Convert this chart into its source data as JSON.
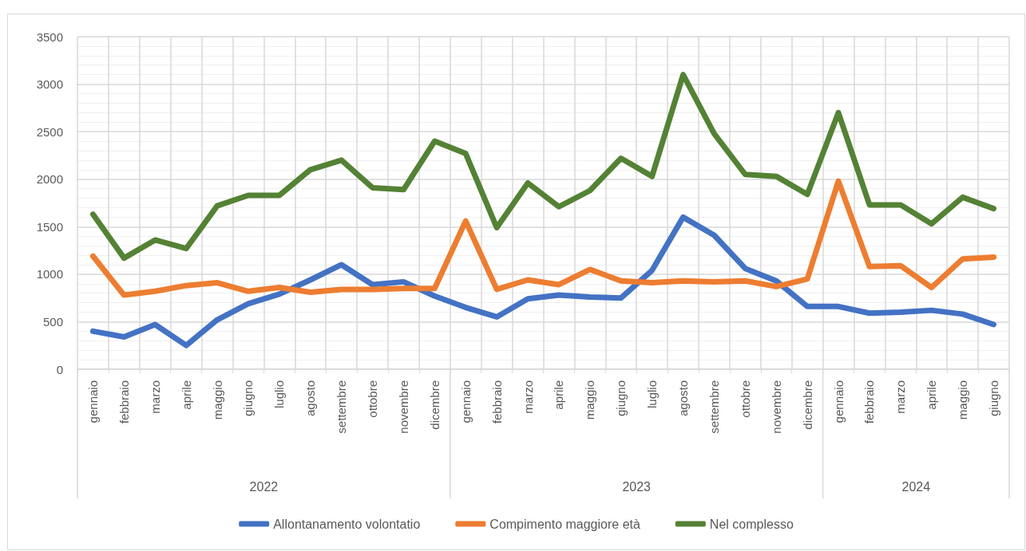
{
  "chart_data": {
    "type": "line",
    "categories": [
      "gennaio",
      "febbraio",
      "marzo",
      "aprile",
      "maggio",
      "giugno",
      "luglio",
      "agosto",
      "settembre",
      "ottobre",
      "novembre",
      "dicembre",
      "gennaio",
      "febbraio",
      "marzo",
      "aprile",
      "maggio",
      "giugno",
      "luglio",
      "agosto",
      "settembre",
      "ottobre",
      "novembre",
      "dicembre",
      "gennaio",
      "febbraio",
      "marzo",
      "aprile",
      "maggio",
      "giugno"
    ],
    "series": [
      {
        "name": "Allontanamento volontatio",
        "color": "#4472c4",
        "values": [
          400,
          340,
          470,
          250,
          520,
          690,
          790,
          940,
          1100,
          890,
          920,
          770,
          650,
          550,
          740,
          780,
          760,
          750,
          1040,
          1600,
          1410,
          1060,
          930,
          660,
          660,
          590,
          600,
          620,
          580,
          470
        ]
      },
      {
        "name": "Compimento maggiore età",
        "color": "#ed7d31",
        "values": [
          1190,
          780,
          820,
          880,
          910,
          820,
          860,
          810,
          840,
          840,
          850,
          850,
          1560,
          840,
          940,
          890,
          1050,
          930,
          910,
          930,
          920,
          930,
          870,
          950,
          1980,
          1080,
          1090,
          860,
          1160,
          1180
        ]
      },
      {
        "name": "Nel complesso",
        "color": "#548235",
        "values": [
          1630,
          1170,
          1360,
          1270,
          1720,
          1830,
          1830,
          2100,
          2200,
          1910,
          1890,
          2400,
          2270,
          1490,
          1960,
          1710,
          1880,
          2220,
          2030,
          3100,
          2480,
          2050,
          2030,
          1840,
          2700,
          1730,
          1730,
          1530,
          1810,
          1690
        ]
      }
    ],
    "ylim": [
      0,
      3500
    ],
    "yticks": [
      0,
      500,
      1000,
      1500,
      2000,
      2500,
      3000,
      3500
    ],
    "grid": true,
    "legend": "bottom",
    "marker": "none",
    "line_style": "solid",
    "annotations": [
      "2022",
      "2023",
      "2024"
    ]
  }
}
